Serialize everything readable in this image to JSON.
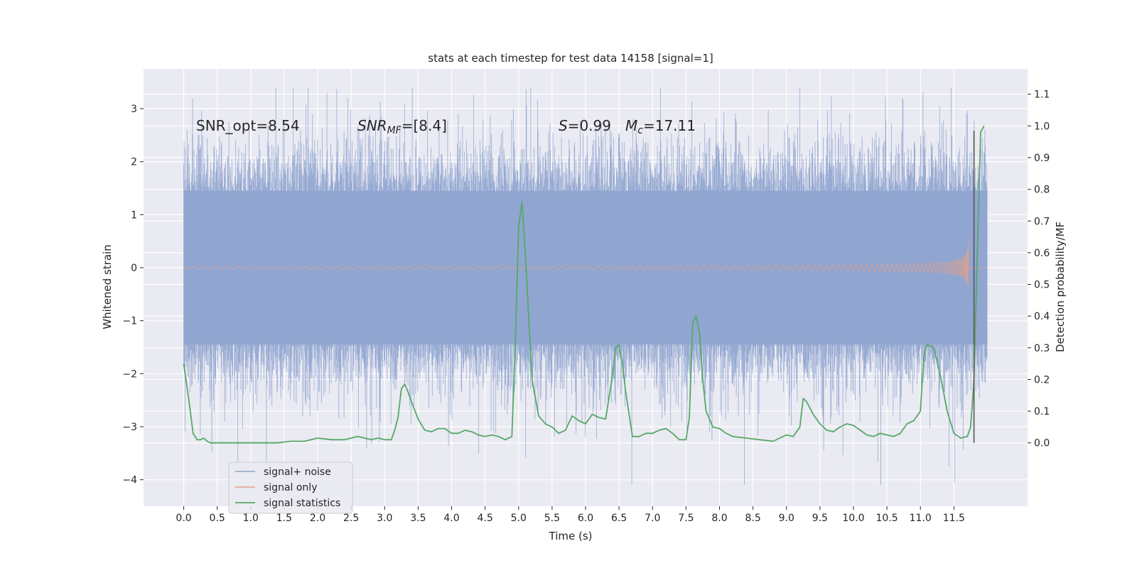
{
  "chart_data": {
    "type": "line",
    "title": "stats at each timestep for test data 14158 [signal=1]",
    "xlabel": "Time (s)",
    "ylabel_left": "Whitened strain",
    "ylabel_right": "Detection probability/MF",
    "xlim": [
      -0.6,
      12.6
    ],
    "ylim_left": [
      -4.5,
      3.75
    ],
    "ylim_right": [
      -0.2,
      1.18
    ],
    "grid": true,
    "legend_position": "lower-left",
    "x_ticks": [
      "0.0",
      "0.5",
      "1.0",
      "1.5",
      "2.0",
      "2.5",
      "3.0",
      "3.5",
      "4.0",
      "4.5",
      "5.0",
      "5.5",
      "6.0",
      "6.5",
      "7.0",
      "7.5",
      "8.0",
      "8.5",
      "9.0",
      "9.5",
      "10.0",
      "10.5",
      "11.0",
      "11.5"
    ],
    "y_ticks_left": [
      "3",
      "2",
      "1",
      "0",
      "−1",
      "−2",
      "−3",
      "−4"
    ],
    "y_ticks_right": [
      "1.1",
      "1.0",
      "0.9",
      "0.8",
      "0.7",
      "0.6",
      "0.5",
      "0.4",
      "0.3",
      "0.2",
      "0.1",
      "0.0"
    ],
    "annotations": {
      "snr_opt": "SNR_opt=8.54",
      "snr_mf_main": "SNR",
      "snr_mf_sub": "MF",
      "snr_mf_value": "=[8.4]",
      "s_main": "S",
      "s_value": "=0.99",
      "mc_main": "M",
      "mc_sub": "c",
      "mc_value": "=17.11"
    },
    "series": [
      {
        "name": "signal+ noise",
        "color": "#8fa4cf",
        "x_range": [
          0.0,
          12.0
        ],
        "envelope": "noise approx. ±1.5 with peaks to ±3.4"
      },
      {
        "name": "signal only",
        "color": "#e1a18a",
        "chirp_end": 11.72,
        "max_amplitude": 1.6
      },
      {
        "name": "signal statistics",
        "color": "#55a868",
        "x": [
          0.0,
          0.08,
          0.14,
          0.2,
          0.25,
          0.3,
          0.35,
          0.4,
          0.5,
          0.6,
          0.7,
          0.8,
          0.9,
          1.0,
          1.2,
          1.4,
          1.6,
          1.8,
          2.0,
          2.2,
          2.4,
          2.6,
          2.7,
          2.8,
          2.9,
          3.0,
          3.1,
          3.15,
          3.2,
          3.25,
          3.3,
          3.35,
          3.4,
          3.5,
          3.6,
          3.7,
          3.8,
          3.9,
          4.0,
          4.1,
          4.2,
          4.3,
          4.4,
          4.5,
          4.6,
          4.7,
          4.8,
          4.9,
          4.95,
          5.0,
          5.05,
          5.1,
          5.15,
          5.2,
          5.3,
          5.4,
          5.5,
          5.6,
          5.7,
          5.8,
          5.9,
          6.0,
          6.1,
          6.2,
          6.3,
          6.4,
          6.45,
          6.5,
          6.55,
          6.6,
          6.7,
          6.8,
          6.9,
          7.0,
          7.1,
          7.2,
          7.3,
          7.4,
          7.5,
          7.55,
          7.6,
          7.65,
          7.7,
          7.75,
          7.8,
          7.9,
          8.0,
          8.1,
          8.2,
          8.4,
          8.6,
          8.8,
          8.9,
          9.0,
          9.1,
          9.2,
          9.25,
          9.3,
          9.4,
          9.5,
          9.6,
          9.7,
          9.8,
          9.9,
          10.0,
          10.1,
          10.2,
          10.3,
          10.4,
          10.5,
          10.6,
          10.7,
          10.8,
          10.9,
          11.0,
          11.05,
          11.1,
          11.2,
          11.3,
          11.4,
          11.5,
          11.6,
          11.7,
          11.75,
          11.8,
          11.85,
          11.9,
          11.95
        ],
        "values": [
          0.25,
          0.13,
          0.03,
          0.01,
          0.01,
          0.015,
          0.005,
          0.0,
          0.0,
          0.0,
          0.0,
          0.0,
          0.0,
          0.0,
          0.0,
          0.0,
          0.005,
          0.005,
          0.015,
          0.01,
          0.01,
          0.02,
          0.015,
          0.01,
          0.015,
          0.01,
          0.01,
          0.04,
          0.08,
          0.17,
          0.185,
          0.16,
          0.13,
          0.075,
          0.04,
          0.035,
          0.045,
          0.045,
          0.03,
          0.03,
          0.04,
          0.035,
          0.025,
          0.02,
          0.025,
          0.02,
          0.01,
          0.02,
          0.3,
          0.68,
          0.76,
          0.6,
          0.4,
          0.2,
          0.085,
          0.06,
          0.05,
          0.03,
          0.04,
          0.085,
          0.07,
          0.06,
          0.09,
          0.08,
          0.075,
          0.21,
          0.3,
          0.31,
          0.25,
          0.16,
          0.02,
          0.02,
          0.03,
          0.03,
          0.04,
          0.045,
          0.03,
          0.01,
          0.01,
          0.08,
          0.38,
          0.4,
          0.35,
          0.2,
          0.1,
          0.05,
          0.045,
          0.03,
          0.02,
          0.015,
          0.01,
          0.005,
          0.015,
          0.025,
          0.02,
          0.05,
          0.14,
          0.13,
          0.09,
          0.06,
          0.04,
          0.035,
          0.05,
          0.06,
          0.055,
          0.04,
          0.025,
          0.02,
          0.03,
          0.025,
          0.02,
          0.03,
          0.06,
          0.07,
          0.1,
          0.27,
          0.31,
          0.3,
          0.21,
          0.1,
          0.03,
          0.015,
          0.02,
          0.05,
          0.2,
          0.6,
          0.98,
          1.0
        ]
      }
    ],
    "marker_line": {
      "x": 11.8,
      "y_top_strain": 2.58,
      "y_bottom_prob": 0.0
    }
  }
}
